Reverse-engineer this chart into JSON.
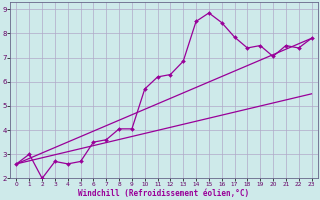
{
  "xlabel": "Windchill (Refroidissement éolien,°C)",
  "bg_color": "#ceeaea",
  "line_color": "#990099",
  "grid_color": "#b0a8c8",
  "x_data": [
    0,
    1,
    2,
    3,
    4,
    5,
    6,
    7,
    8,
    9,
    10,
    11,
    12,
    13,
    14,
    15,
    16,
    17,
    18,
    19,
    20,
    21,
    22,
    23
  ],
  "y_main": [
    2.6,
    3.0,
    2.0,
    2.7,
    2.6,
    2.7,
    3.5,
    3.6,
    4.05,
    4.05,
    5.7,
    6.2,
    6.3,
    6.85,
    8.5,
    8.85,
    8.45,
    7.85,
    7.4,
    7.5,
    7.05,
    7.5,
    7.4,
    7.8
  ],
  "y_line1_start": 2.6,
  "y_line1_end": 7.8,
  "y_line2_start": 2.6,
  "y_line2_end": 5.5,
  "ylim_bottom": 2.0,
  "ylim_top": 9.3,
  "xlim_left": -0.5,
  "xlim_right": 23.5,
  "yticks": [
    2,
    3,
    4,
    5,
    6,
    7,
    8,
    9
  ],
  "xticks": [
    0,
    1,
    2,
    3,
    4,
    5,
    6,
    7,
    8,
    9,
    10,
    11,
    12,
    13,
    14,
    15,
    16,
    17,
    18,
    19,
    20,
    21,
    22,
    23
  ]
}
